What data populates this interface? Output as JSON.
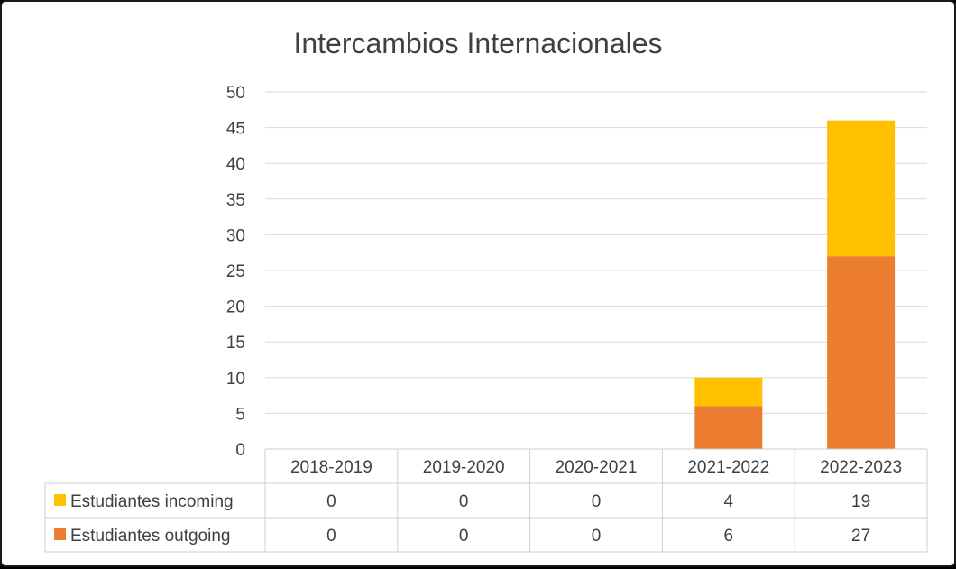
{
  "chart_data": {
    "type": "bar",
    "stacked": true,
    "title": "Intercambios Internacionales",
    "categories": [
      "2018-2019",
      "2019-2020",
      "2020-2021",
      "2021-2022",
      "2022-2023"
    ],
    "series": [
      {
        "name": "Estudiantes outgoing",
        "color": "#ED7D31",
        "values": [
          0,
          0,
          0,
          6,
          27
        ]
      },
      {
        "name": "Estudiantes incoming",
        "color": "#FFC000",
        "values": [
          0,
          0,
          0,
          4,
          19
        ]
      }
    ],
    "yticks": [
      "0",
      "5",
      "10",
      "15",
      "20",
      "25",
      "30",
      "35",
      "40",
      "45",
      "50"
    ],
    "ylim": [
      0,
      50
    ],
    "grid": true,
    "legend": "data-table",
    "table_rows": [
      {
        "name": "Estudiantes incoming",
        "color": "#FFC000",
        "values": [
          "0",
          "0",
          "0",
          "4",
          "19"
        ]
      },
      {
        "name": "Estudiantes outgoing",
        "color": "#ED7D31",
        "values": [
          "0",
          "0",
          "0",
          "6",
          "27"
        ]
      }
    ]
  }
}
